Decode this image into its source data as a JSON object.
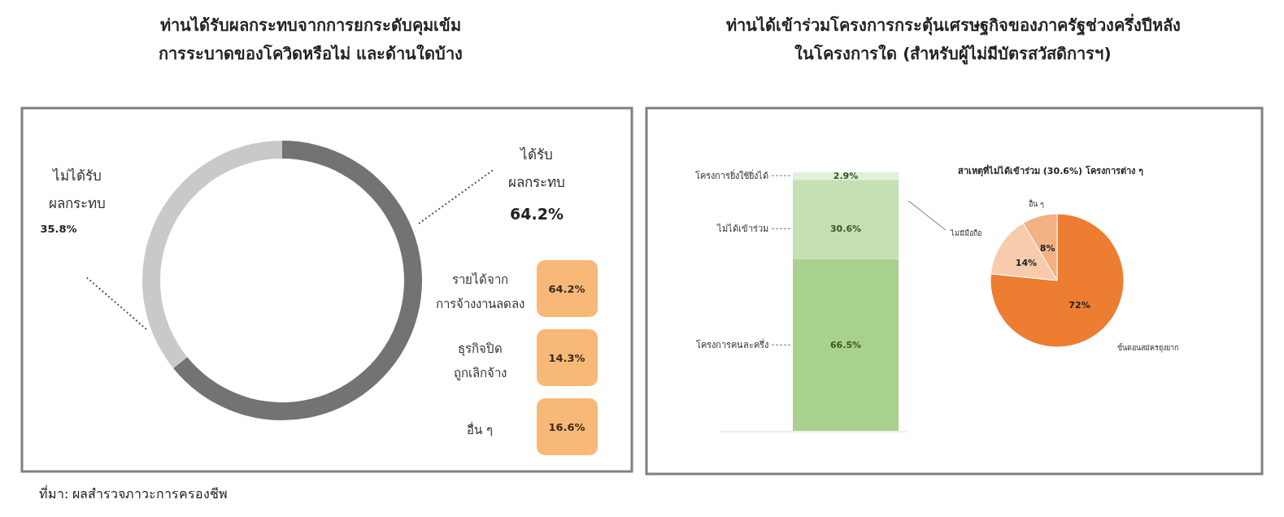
{
  "chart_data": [
    {
      "type": "donut",
      "title": "ท่านได้รับผลกระทบจากการยกระดับคุมเข้ม\nการระบาดของโควิดหรือไม่ และด้านใดบ้าง",
      "categories": [
        "ได้รับ\nผลกระทบ",
        "ไม่ได้รับ\nผลกระทบ"
      ],
      "values": [
        64.2,
        35.8
      ],
      "colors": [
        "#737373",
        "#c9c9c9"
      ],
      "value_labels": [
        "64.2%",
        "35.8%"
      ],
      "annotations": [
        "ที่มา: ผลสำรวจภาวะการครองชีพ"
      ]
    },
    {
      "type": "other",
      "categories": [
        "รายได้จาก\nการจ้างงานลดลง",
        "ธุรกิจปิด\nถูกเลิกจ้าง",
        "อื่น ๆ"
      ],
      "values": [
        64.2,
        14.3,
        16.6
      ],
      "value_labels": [
        "64.2%",
        "14.3%",
        "16.6%"
      ],
      "color": "#f8b878"
    },
    {
      "type": "bar",
      "title": "ท่านได้เข้าร่วมโครงการกระตุ้นเศรษฐกิจของภาครัฐช่วงครึ่งปีหลัง\nในโครงการใด (สำหรับผู้ไม่มีบัตรสวัสดิการฯ)",
      "stacked": true,
      "categories": [
        null
      ],
      "series": [
        {
          "name": "โครงการคนละครึ่ง",
          "color": "#a9d18e",
          "values": [
            66.5
          ],
          "value_labels": [
            "66.5%"
          ]
        },
        {
          "name": "ไม่ได้เข้าร่วม",
          "color": "#c5e0b4",
          "values": [
            30.6
          ],
          "value_labels": [
            "30.6%"
          ]
        },
        {
          "name": "โครงการยิ่งใช้ยิ่งได้",
          "color": "#e2efda",
          "values": [
            2.9
          ],
          "value_labels": [
            "2.9%"
          ]
        }
      ]
    },
    {
      "type": "pie",
      "title": "สาเหตุที่ไม่ได้เข้าร่วม (30.6%) โครงการต่าง ๆ",
      "categories": [
        "ขั้นตอนสมัครยุ่งยาก",
        "ไม่มีมือถือ",
        "อื่น ๆ"
      ],
      "values": [
        72,
        14,
        8
      ],
      "colors": [
        "#ed7d31",
        "#f8cbad",
        "#f4b183"
      ],
      "value_labels": [
        "72%",
        "14%",
        "8%"
      ]
    }
  ]
}
